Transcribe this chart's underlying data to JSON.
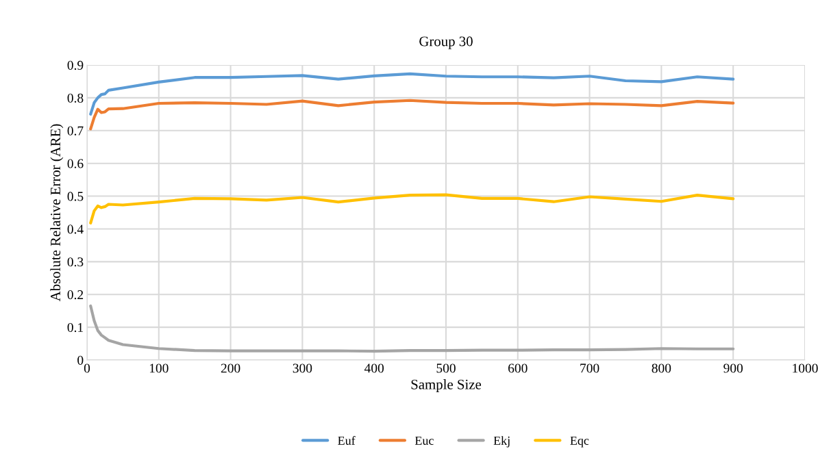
{
  "chart_data": {
    "type": "line",
    "title": "Group 30",
    "xlabel": "Sample Size",
    "ylabel": "Absolute Relative Error (ARE)",
    "x": [
      5,
      10,
      15,
      20,
      25,
      30,
      50,
      100,
      150,
      200,
      250,
      300,
      350,
      400,
      450,
      500,
      550,
      600,
      650,
      700,
      750,
      800,
      850,
      900
    ],
    "series": [
      {
        "name": "Euf",
        "color": "#5b9bd5",
        "values": [
          0.75,
          0.785,
          0.8,
          0.81,
          0.812,
          0.823,
          0.83,
          0.848,
          0.862,
          0.862,
          0.865,
          0.868,
          0.857,
          0.867,
          0.873,
          0.866,
          0.864,
          0.864,
          0.861,
          0.866,
          0.852,
          0.849,
          0.864,
          0.857
        ]
      },
      {
        "name": "Euc",
        "color": "#ed7d31",
        "values": [
          0.705,
          0.74,
          0.765,
          0.755,
          0.757,
          0.766,
          0.767,
          0.783,
          0.785,
          0.783,
          0.78,
          0.79,
          0.776,
          0.787,
          0.792,
          0.786,
          0.783,
          0.783,
          0.778,
          0.782,
          0.78,
          0.776,
          0.789,
          0.784
        ]
      },
      {
        "name": "Ekj",
        "color": "#a5a5a5",
        "values": [
          0.165,
          0.12,
          0.09,
          0.076,
          0.068,
          0.06,
          0.047,
          0.035,
          0.029,
          0.028,
          0.028,
          0.028,
          0.028,
          0.027,
          0.029,
          0.029,
          0.03,
          0.03,
          0.031,
          0.031,
          0.032,
          0.035,
          0.034,
          0.034
        ]
      },
      {
        "name": "Eqc",
        "color": "#ffc000",
        "values": [
          0.418,
          0.455,
          0.47,
          0.465,
          0.468,
          0.475,
          0.473,
          0.482,
          0.493,
          0.492,
          0.488,
          0.496,
          0.482,
          0.494,
          0.503,
          0.504,
          0.493,
          0.493,
          0.483,
          0.498,
          0.491,
          0.484,
          0.503,
          0.492
        ]
      }
    ],
    "xlim": [
      0,
      1000
    ],
    "xticks": [
      0,
      100,
      200,
      300,
      400,
      500,
      600,
      700,
      800,
      900,
      1000
    ],
    "ylim": [
      0,
      0.9
    ],
    "yticks": [
      {
        "value": 0,
        "label": "0"
      },
      0.1,
      0.2,
      0.3,
      0.4,
      0.5,
      0.6,
      0.7,
      0.8,
      0.9
    ],
    "grid": true,
    "legend": "bottom",
    "marker": "none",
    "line_style": "solid"
  }
}
